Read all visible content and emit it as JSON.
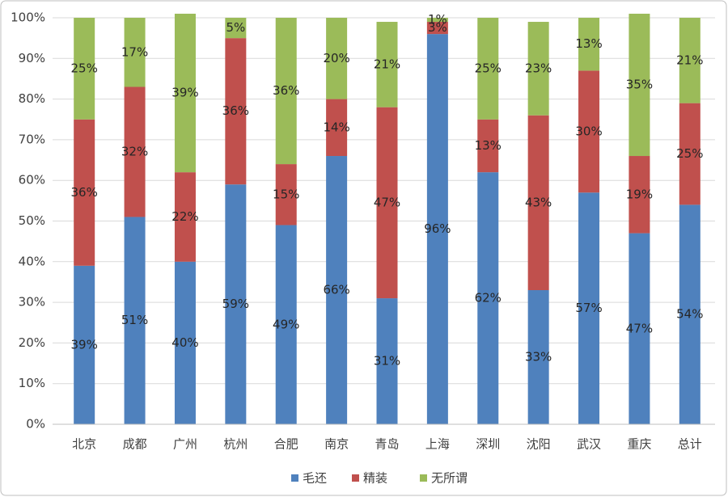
{
  "chart_data": {
    "type": "stacked_bar",
    "categories": [
      "北京",
      "成都",
      "广州",
      "杭州",
      "合肥",
      "南京",
      "青岛",
      "上海",
      "深圳",
      "沈阳",
      "武汉",
      "重庆",
      "总计"
    ],
    "series": [
      {
        "name": "毛还",
        "color": "#4f81bd",
        "values": [
          39,
          51,
          40,
          59,
          49,
          66,
          31,
          96,
          62,
          33,
          57,
          47,
          54
        ],
        "value_labels": [
          "39%",
          "51%",
          "40%",
          "59%",
          "49%",
          "66%",
          "31%",
          "96%",
          "62%",
          "33%",
          "57%",
          "47%",
          "54%"
        ]
      },
      {
        "name": "精装",
        "color": "#c0504d",
        "values": [
          36,
          32,
          22,
          36,
          15,
          14,
          47,
          3,
          13,
          43,
          30,
          19,
          25
        ],
        "value_labels": [
          "36%",
          "32%",
          "22%",
          "36%",
          "15%",
          "14%",
          "47%",
          "3%",
          "13%",
          "43%",
          "30%",
          "19%",
          "25%"
        ]
      },
      {
        "name": "无所谓",
        "color": "#9bbb59",
        "values": [
          25,
          17,
          39,
          5,
          36,
          20,
          21,
          1,
          25,
          23,
          13,
          35,
          21
        ],
        "value_labels": [
          "25%",
          "17%",
          "39%",
          "5%",
          "36%",
          "20%",
          "21%",
          "1%",
          "25%",
          "23%",
          "13%",
          "35%",
          "21%"
        ]
      }
    ],
    "ylim": [
      0,
      100
    ],
    "yticks": [
      {
        "value": 0,
        "label": "0%"
      },
      {
        "value": 10,
        "label": "10%"
      },
      {
        "value": 20,
        "label": "20%"
      },
      {
        "value": 30,
        "label": "30%"
      },
      {
        "value": 40,
        "label": "40%"
      },
      {
        "value": 50,
        "label": "50%"
      },
      {
        "value": 60,
        "label": "60%"
      },
      {
        "value": 70,
        "label": "70%"
      },
      {
        "value": 80,
        "label": "80%"
      },
      {
        "value": 90,
        "label": "90%"
      },
      {
        "value": 100,
        "label": "100%"
      }
    ],
    "grid": true,
    "legend": "bottom"
  }
}
